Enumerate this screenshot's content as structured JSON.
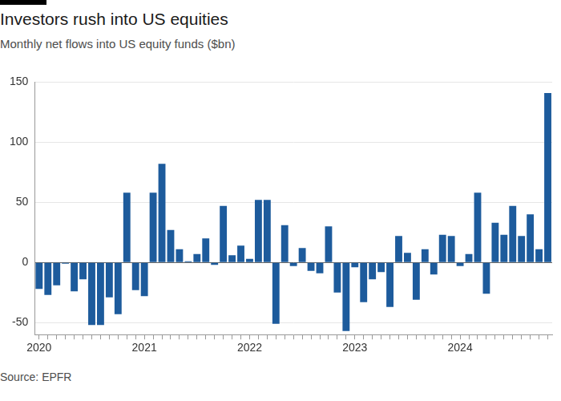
{
  "chart_data": {
    "type": "bar",
    "title": "Investors rush into US equities",
    "subtitle": "Monthly net flows into US equity funds ($bn)",
    "source": "Source: EPFR",
    "categories": [
      "2020",
      null,
      null,
      null,
      null,
      null,
      null,
      null,
      null,
      null,
      null,
      null,
      "2021",
      null,
      null,
      null,
      null,
      null,
      null,
      null,
      null,
      null,
      null,
      null,
      "2022",
      null,
      null,
      null,
      null,
      null,
      null,
      null,
      null,
      null,
      null,
      null,
      "2023",
      null,
      null,
      null,
      null,
      null,
      null,
      null,
      null,
      null,
      null,
      null,
      "2024",
      null,
      null,
      null,
      null,
      null,
      null,
      null,
      null,
      null,
      null
    ],
    "values": [
      -22,
      -27,
      -19,
      -1,
      -24,
      -14,
      -52,
      -52,
      -29,
      -43,
      58,
      -23,
      -28,
      58,
      82,
      27,
      11,
      1,
      7,
      20,
      -2,
      47,
      6,
      14,
      3,
      52,
      52,
      -51,
      31,
      -3,
      12,
      -7,
      -9,
      30,
      -25,
      -57,
      -4,
      -33,
      -14,
      -8,
      -37,
      22,
      8,
      -31,
      11,
      -10,
      23,
      22,
      -3,
      7,
      58,
      -26,
      33,
      23,
      47,
      22,
      40,
      11,
      141
    ],
    "color": "#1d5b9c",
    "ylim": [
      -60,
      150
    ],
    "yticks": [
      -50,
      0,
      50,
      100,
      150
    ],
    "grid": true
  }
}
